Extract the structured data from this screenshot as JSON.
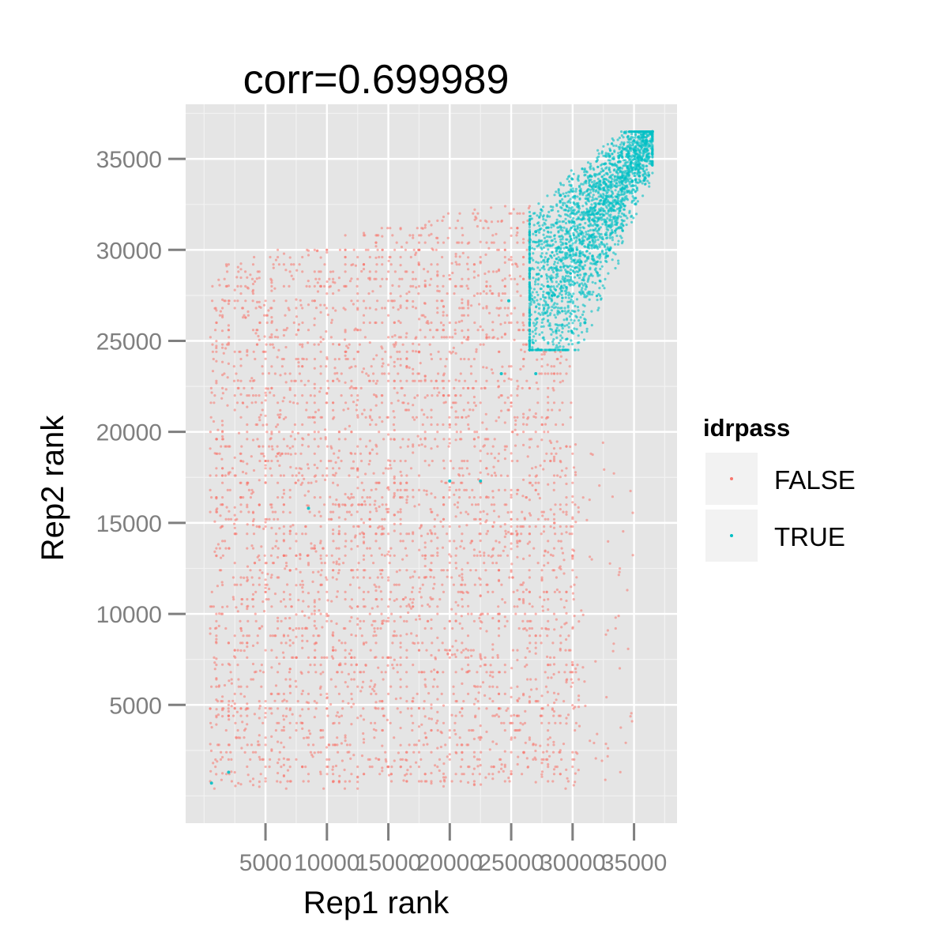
{
  "chart_data": {
    "type": "scatter",
    "title": "corr=0.699989",
    "xlabel": "Rep1 rank",
    "ylabel": "Rep2 rank",
    "xlim": [
      -1500,
      38500
    ],
    "ylim": [
      -1500,
      38000
    ],
    "x_ticks": [
      5000,
      10000,
      15000,
      20000,
      25000,
      30000,
      35000
    ],
    "x_tick_labels": [
      "5000",
      "10000",
      "15000",
      "20000",
      "25000",
      "30000",
      "35000"
    ],
    "y_ticks": [
      5000,
      10000,
      15000,
      20000,
      25000,
      30000,
      35000
    ],
    "y_tick_labels": [
      "5000",
      "10000",
      "15000",
      "20000",
      "25000",
      "30000",
      "35000"
    ],
    "grid": true,
    "legend": {
      "title": "idrpass",
      "placement": "right",
      "entries": [
        {
          "label": "FALSE",
          "color": "#F8766D"
        },
        {
          "label": "TRUE",
          "color": "#00BFC4"
        }
      ]
    },
    "series": [
      {
        "name": "FALSE",
        "color": "#F8766D",
        "description_region": "dense points filling the region x from 500 to 28000, y from 500 to 32000, rising toward the diagonal",
        "sample_points": [
          [
            1000,
            1000
          ],
          [
            1200,
            29500
          ],
          [
            2000,
            31500
          ],
          [
            5000,
            28000
          ],
          [
            8000,
            29500
          ],
          [
            12000,
            30000
          ],
          [
            15000,
            31000
          ],
          [
            20000,
            32000
          ],
          [
            25000,
            33000
          ],
          [
            27000,
            32500
          ],
          [
            3000,
            15000
          ],
          [
            6000,
            8000
          ],
          [
            10000,
            12000
          ],
          [
            14000,
            18000
          ],
          [
            18000,
            20000
          ],
          [
            22000,
            22000
          ],
          [
            24000,
            25000
          ],
          [
            26000,
            24000
          ],
          [
            29000,
            20000
          ],
          [
            31000,
            15000
          ],
          [
            32000,
            12000
          ],
          [
            30000,
            5000
          ],
          [
            28000,
            3000
          ],
          [
            33000,
            13000
          ],
          [
            27000,
            1000
          ]
        ]
      },
      {
        "name": "TRUE",
        "color": "#00BFC4",
        "description_region": "dense cluster in upper right, x from 25000 to 36500, y from 24500 to 36500",
        "sample_points": [
          [
            26500,
            25000
          ],
          [
            28000,
            28000
          ],
          [
            30000,
            30000
          ],
          [
            32000,
            32000
          ],
          [
            34000,
            34000
          ],
          [
            36000,
            36000
          ],
          [
            36500,
            36500
          ],
          [
            27000,
            31000
          ],
          [
            29000,
            33000
          ],
          [
            33000,
            30000
          ],
          [
            31000,
            26000
          ],
          [
            35000,
            35500
          ],
          [
            24800,
            27200
          ],
          [
            24200,
            23200
          ],
          [
            27000,
            23200
          ],
          [
            20000,
            17300
          ],
          [
            22500,
            17300
          ],
          [
            8500,
            15800
          ],
          [
            600,
            700
          ],
          [
            2000,
            1300
          ]
        ]
      }
    ]
  }
}
